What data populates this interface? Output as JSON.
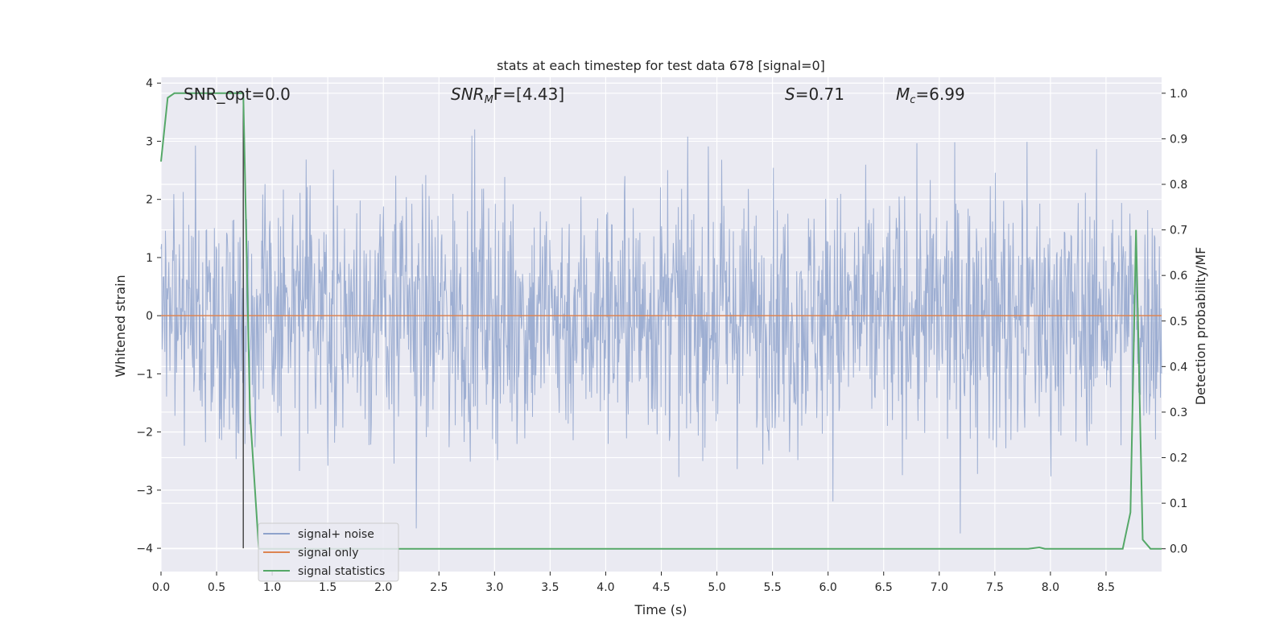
{
  "chart_data": {
    "type": "line",
    "title": "stats at each timestep for test data 678 [signal=0]",
    "xlabel": "Time (s)",
    "ylabel_left": "Whitened strain",
    "ylabel_right": "Detection probability/MF",
    "xlim": [
      0.0,
      9.0
    ],
    "ylim_left": [
      -4.4,
      4.1
    ],
    "ylim_right": [
      -0.05,
      1.035
    ],
    "x_ticks": [
      "0.0",
      "0.5",
      "1.0",
      "1.5",
      "2.0",
      "2.5",
      "3.0",
      "3.5",
      "4.0",
      "4.5",
      "5.0",
      "5.5",
      "6.0",
      "6.5",
      "7.0",
      "7.5",
      "8.0",
      "8.5"
    ],
    "x_tick_values": [
      0.0,
      0.5,
      1.0,
      1.5,
      2.0,
      2.5,
      3.0,
      3.5,
      4.0,
      4.5,
      5.0,
      5.5,
      6.0,
      6.5,
      7.0,
      7.5,
      8.0,
      8.5
    ],
    "y_left_ticks": [
      "4",
      "3",
      "2",
      "1",
      "0",
      "−1",
      "−2",
      "−3",
      "−4"
    ],
    "y_left_tick_values": [
      4,
      3,
      2,
      1,
      0,
      -1,
      -2,
      -3,
      -4
    ],
    "y_right_ticks": [
      "1.0",
      "0.9",
      "0.8",
      "0.7",
      "0.6",
      "0.5",
      "0.4",
      "0.3",
      "0.2",
      "0.1",
      "0.0"
    ],
    "y_right_tick_values": [
      1.0,
      0.9,
      0.8,
      0.7,
      0.6,
      0.5,
      0.4,
      0.3,
      0.2,
      0.1,
      0.0
    ],
    "annotations": {
      "snr_opt": "SNR_opt=0.0",
      "snr_mf_base": "SNR",
      "snr_mf_sub": "M",
      "snr_mf_rest": "F=[4.43]",
      "s_label": "S",
      "s_value": "=0.71",
      "mc_base": "M",
      "mc_sub": "c",
      "mc_value": "=6.99"
    },
    "legend": {
      "position": "lower-left",
      "entries": [
        "signal+ noise",
        "signal only",
        "signal statistics"
      ]
    },
    "series": [
      {
        "name": "signal+ noise",
        "axis": "left",
        "color": "#8fa3cc",
        "description": "dense noise band, roughly between -2 and 2 with spikes to about 3.3 / -3.8",
        "upper_envelope_approx": 1.8,
        "lower_envelope_approx": -1.8,
        "max_spike": 3.3,
        "min_spike": -3.8
      },
      {
        "name": "signal only",
        "axis": "left",
        "color": "#dd8452",
        "x": [
          0.0,
          9.0
        ],
        "y": [
          0.0,
          0.0
        ]
      },
      {
        "name": "signal statistics",
        "axis": "right",
        "color": "#55a868",
        "x": [
          0.0,
          0.06,
          0.12,
          0.7,
          0.74,
          0.8,
          0.88,
          1.0,
          7.8,
          7.9,
          7.95,
          8.0,
          8.65,
          8.72,
          8.77,
          8.83,
          8.9,
          9.0
        ],
        "y": [
          0.85,
          0.99,
          1.0,
          1.0,
          1.0,
          0.3,
          0.0,
          0.0,
          0.0,
          0.003,
          0.0,
          0.0,
          0.0,
          0.08,
          0.7,
          0.02,
          0.0,
          0.0
        ]
      }
    ],
    "vertical_marker": {
      "x": 0.74,
      "y_from": -4.0,
      "y_to": 3.7,
      "color": "#333333"
    }
  }
}
